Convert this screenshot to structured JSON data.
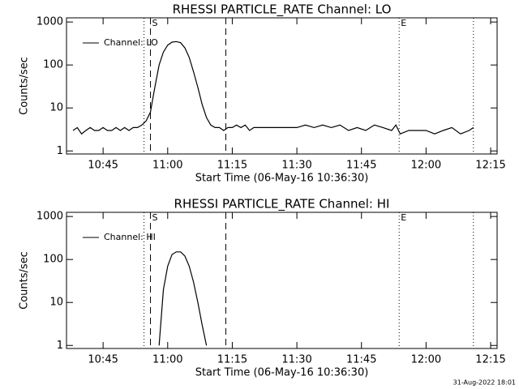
{
  "chart_data": [
    {
      "type": "line",
      "title": "RHESSI PARTICLE_RATE Channel: LO",
      "xlabel": "Start Time (06-May-16 10:36:30)",
      "ylabel": "Counts/sec",
      "x": [
        "10:38",
        "10:39",
        "10:40",
        "10:41",
        "10:42",
        "10:43",
        "10:44",
        "10:45",
        "10:46",
        "10:47",
        "10:48",
        "10:49",
        "10:50",
        "10:51",
        "10:52",
        "10:53",
        "10:54",
        "10:55",
        "10:56",
        "10:57",
        "10:58",
        "10:59",
        "11:00",
        "11:01",
        "11:02",
        "11:03",
        "11:04",
        "11:05",
        "11:06",
        "11:07",
        "11:08",
        "11:09",
        "11:10",
        "11:11",
        "11:12",
        "11:13",
        "11:14",
        "11:15",
        "11:16",
        "11:17",
        "11:18",
        "11:19",
        "11:20",
        "11:22",
        "11:24",
        "11:26",
        "11:28",
        "11:30",
        "11:32",
        "11:34",
        "11:36",
        "11:38",
        "11:40",
        "11:42",
        "11:44",
        "11:46",
        "11:48",
        "11:50",
        "11:52",
        "11:53",
        "11:54",
        "11:56",
        "11:58",
        "12:00",
        "12:02",
        "12:04",
        "12:06",
        "12:08",
        "12:10",
        "12:11"
      ],
      "series": [
        {
          "name": "Channel: LO",
          "color": "#000000",
          "values": [
            3,
            3.5,
            2.5,
            3,
            3.5,
            3,
            3,
            3.5,
            3,
            3,
            3.5,
            3,
            3.5,
            3,
            3.5,
            3.5,
            4,
            5,
            8,
            30,
            100,
            200,
            290,
            340,
            350,
            330,
            250,
            150,
            70,
            30,
            12,
            6,
            4,
            3.5,
            3.5,
            3,
            3.5,
            3.5,
            4,
            3.5,
            4,
            3,
            3.5,
            3.5,
            3.5,
            3.5,
            3.5,
            3.5,
            4,
            3.5,
            4,
            3.5,
            4,
            3,
            3.5,
            3,
            4,
            3.5,
            3,
            4,
            2.5,
            3,
            3,
            3,
            2.5,
            3,
            3.5,
            2.5,
            3,
            3.5
          ]
        }
      ],
      "xlim": [
        "10:36:30",
        "12:16:30"
      ],
      "xticks": [
        "10:45",
        "11:00",
        "11:15",
        "11:30",
        "11:45",
        "12:00",
        "12:15"
      ],
      "ylim": [
        0.85,
        1250
      ],
      "yticks": [
        1,
        10,
        100,
        1000
      ],
      "log": true,
      "vlines": [
        {
          "x": "10:54:30",
          "style": "dotted"
        },
        {
          "x": "10:56",
          "style": "dashed",
          "label": "S"
        },
        {
          "x": "11:13:30",
          "style": "dashed"
        },
        {
          "x": "11:53:45",
          "style": "dotted",
          "label": "E"
        },
        {
          "x": "12:11",
          "style": "dotted"
        }
      ]
    },
    {
      "type": "line",
      "title": "RHESSI PARTICLE_RATE Channel: HI",
      "xlabel": "Start Time (06-May-16 10:36:30)",
      "ylabel": "Counts/sec",
      "x": [
        "10:58",
        "10:59",
        "11:00",
        "11:01",
        "11:02",
        "11:03",
        "11:04",
        "11:05",
        "11:06",
        "11:07",
        "11:08",
        "11:09"
      ],
      "series": [
        {
          "name": "Channel: HI",
          "color": "#000000",
          "values": [
            1,
            20,
            70,
            130,
            150,
            150,
            120,
            70,
            30,
            10,
            3,
            1
          ]
        }
      ],
      "xlim": [
        "10:36:30",
        "12:16:30"
      ],
      "xticks": [
        "10:45",
        "11:00",
        "11:15",
        "11:30",
        "11:45",
        "12:00",
        "12:15"
      ],
      "ylim": [
        0.85,
        1250
      ],
      "yticks": [
        1,
        10,
        100,
        1000
      ],
      "log": true,
      "vlines": [
        {
          "x": "10:54:30",
          "style": "dotted"
        },
        {
          "x": "10:56",
          "style": "dashed",
          "label": "S"
        },
        {
          "x": "11:13:30",
          "style": "dashed"
        },
        {
          "x": "11:53:45",
          "style": "dotted",
          "label": "E"
        },
        {
          "x": "12:11",
          "style": "dotted"
        }
      ]
    }
  ],
  "timestamp": "31-Aug-2022 18:01"
}
